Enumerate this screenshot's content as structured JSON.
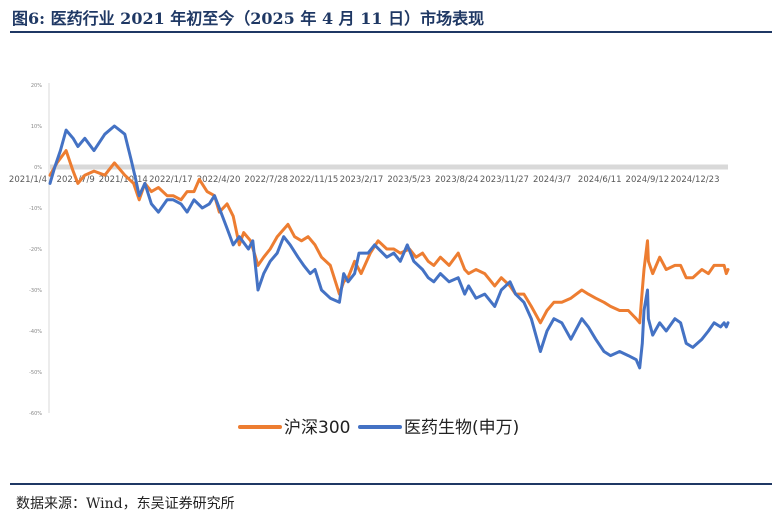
{
  "figure": {
    "title": "图6:  医药行业 2021 年初至今（2025 年 4 月 11 日）市场表现",
    "source": "数据来源：Wind，东吴证券研究所"
  },
  "chart_data": {
    "type": "line",
    "x_tick_labels": [
      "2021/1/4",
      "2021/7/9",
      "2021/10/14",
      "2022/1/17",
      "2022/4/20",
      "2022/7/28",
      "2022/11/15",
      "2023/2/17",
      "2023/5/23",
      "2023/8/24",
      "2023/11/27",
      "2024/3/7",
      "2024/6/11",
      "2024/9/12",
      "2024/12/23"
    ],
    "y_tick_labels": [
      "20%",
      "10%",
      "0%",
      "-10%",
      "-20%",
      "-30%",
      "-40%",
      "-50%",
      "-60%"
    ],
    "y_ticks": [
      20,
      10,
      0,
      -10,
      -20,
      -30,
      -40,
      -50,
      -60
    ],
    "ylim": [
      -60,
      20
    ],
    "x_range": [
      "2021-01-04",
      "2025-04-11"
    ],
    "legend_position": "bottom",
    "series": [
      {
        "name": "沪深300",
        "color": "#ed7d31",
        "points": [
          [
            "2021-01-04",
            -2
          ],
          [
            "2021-01-20",
            1
          ],
          [
            "2021-02-10",
            4
          ],
          [
            "2021-02-26",
            -1
          ],
          [
            "2021-03-09",
            -4
          ],
          [
            "2021-03-25",
            -2
          ],
          [
            "2021-04-15",
            -1
          ],
          [
            "2021-05-10",
            -2
          ],
          [
            "2021-06-01",
            1
          ],
          [
            "2021-06-25",
            -2
          ],
          [
            "2021-07-15",
            -4
          ],
          [
            "2021-07-28",
            -8
          ],
          [
            "2021-08-10",
            -4
          ],
          [
            "2021-08-25",
            -6
          ],
          [
            "2021-09-10",
            -5
          ],
          [
            "2021-09-30",
            -7
          ],
          [
            "2021-10-14",
            -7
          ],
          [
            "2021-11-01",
            -8
          ],
          [
            "2021-11-15",
            -6
          ],
          [
            "2021-12-01",
            -6
          ],
          [
            "2021-12-13",
            -3
          ],
          [
            "2021-12-31",
            -6
          ],
          [
            "2022-01-17",
            -7
          ],
          [
            "2022-01-28",
            -11
          ],
          [
            "2022-02-15",
            -9
          ],
          [
            "2022-03-01",
            -12
          ],
          [
            "2022-03-15",
            -19
          ],
          [
            "2022-03-25",
            -16
          ],
          [
            "2022-04-10",
            -18
          ],
          [
            "2022-04-27",
            -24
          ],
          [
            "2022-05-10",
            -22
          ],
          [
            "2022-05-25",
            -20
          ],
          [
            "2022-06-10",
            -17
          ],
          [
            "2022-07-05",
            -14
          ],
          [
            "2022-07-20",
            -17
          ],
          [
            "2022-08-05",
            -18
          ],
          [
            "2022-08-20",
            -17
          ],
          [
            "2022-09-05",
            -19
          ],
          [
            "2022-09-20",
            -22
          ],
          [
            "2022-10-10",
            -24
          ],
          [
            "2022-10-31",
            -31
          ],
          [
            "2022-11-10",
            -28
          ],
          [
            "2022-11-20",
            -27
          ],
          [
            "2022-12-05",
            -23
          ],
          [
            "2022-12-20",
            -26
          ],
          [
            "2023-01-10",
            -21
          ],
          [
            "2023-01-28",
            -18
          ],
          [
            "2023-02-17",
            -20
          ],
          [
            "2023-03-05",
            -20
          ],
          [
            "2023-03-20",
            -21
          ],
          [
            "2023-04-10",
            -20
          ],
          [
            "2023-04-25",
            -22
          ],
          [
            "2023-05-10",
            -21
          ],
          [
            "2023-05-23",
            -23
          ],
          [
            "2023-06-05",
            -24
          ],
          [
            "2023-06-20",
            -22
          ],
          [
            "2023-07-10",
            -24
          ],
          [
            "2023-07-31",
            -21
          ],
          [
            "2023-08-15",
            -25
          ],
          [
            "2023-08-24",
            -26
          ],
          [
            "2023-09-10",
            -25
          ],
          [
            "2023-09-30",
            -26
          ],
          [
            "2023-10-23",
            -29
          ],
          [
            "2023-11-07",
            -27
          ],
          [
            "2023-11-27",
            -29
          ],
          [
            "2023-12-10",
            -31
          ],
          [
            "2023-12-29",
            -31
          ],
          [
            "2024-01-15",
            -34
          ],
          [
            "2024-02-05",
            -38
          ],
          [
            "2024-02-20",
            -35
          ],
          [
            "2024-03-07",
            -33
          ],
          [
            "2024-03-25",
            -33
          ],
          [
            "2024-04-15",
            -32
          ],
          [
            "2024-05-10",
            -30
          ],
          [
            "2024-05-25",
            -31
          ],
          [
            "2024-06-11",
            -32
          ],
          [
            "2024-06-30",
            -33
          ],
          [
            "2024-07-15",
            -34
          ],
          [
            "2024-08-05",
            -35
          ],
          [
            "2024-08-25",
            -35
          ],
          [
            "2024-09-12",
            -37
          ],
          [
            "2024-09-20",
            -38
          ],
          [
            "2024-09-26",
            -30
          ],
          [
            "2024-09-30",
            -25
          ],
          [
            "2024-10-08",
            -18
          ],
          [
            "2024-10-10",
            -23
          ],
          [
            "2024-10-20",
            -26
          ],
          [
            "2024-11-05",
            -22
          ],
          [
            "2024-11-20",
            -25
          ],
          [
            "2024-12-10",
            -24
          ],
          [
            "2024-12-23",
            -24
          ],
          [
            "2025-01-05",
            -27
          ],
          [
            "2025-01-20",
            -27
          ],
          [
            "2025-02-10",
            -25
          ],
          [
            "2025-02-25",
            -26
          ],
          [
            "2025-03-10",
            -24
          ],
          [
            "2025-03-25",
            -24
          ],
          [
            "2025-04-02",
            -24
          ],
          [
            "2025-04-07",
            -26
          ],
          [
            "2025-04-11",
            -25
          ]
        ]
      },
      {
        "name": "医药生物(申万)",
        "color": "#4472c4",
        "points": [
          [
            "2021-01-04",
            -4
          ],
          [
            "2021-01-15",
            0
          ],
          [
            "2021-01-28",
            4
          ],
          [
            "2021-02-10",
            9
          ],
          [
            "2021-02-26",
            7
          ],
          [
            "2021-03-09",
            5
          ],
          [
            "2021-03-25",
            7
          ],
          [
            "2021-04-15",
            4
          ],
          [
            "2021-05-10",
            8
          ],
          [
            "2021-06-01",
            10
          ],
          [
            "2021-06-25",
            8
          ],
          [
            "2021-07-09",
            2
          ],
          [
            "2021-07-20",
            -3
          ],
          [
            "2021-07-28",
            -7
          ],
          [
            "2021-08-10",
            -4
          ],
          [
            "2021-08-25",
            -9
          ],
          [
            "2021-09-10",
            -11
          ],
          [
            "2021-09-30",
            -8
          ],
          [
            "2021-10-14",
            -8
          ],
          [
            "2021-11-01",
            -9
          ],
          [
            "2021-11-15",
            -11
          ],
          [
            "2021-12-01",
            -8
          ],
          [
            "2021-12-20",
            -10
          ],
          [
            "2022-01-05",
            -9
          ],
          [
            "2022-01-17",
            -7
          ],
          [
            "2022-01-28",
            -10
          ],
          [
            "2022-02-15",
            -15
          ],
          [
            "2022-03-01",
            -19
          ],
          [
            "2022-03-15",
            -17
          ],
          [
            "2022-04-05",
            -20
          ],
          [
            "2022-04-15",
            -18
          ],
          [
            "2022-04-27",
            -30
          ],
          [
            "2022-05-10",
            -26
          ],
          [
            "2022-05-25",
            -23
          ],
          [
            "2022-06-10",
            -21
          ],
          [
            "2022-06-25",
            -17
          ],
          [
            "2022-07-10",
            -19
          ],
          [
            "2022-07-28",
            -22
          ],
          [
            "2022-08-10",
            -24
          ],
          [
            "2022-08-25",
            -26
          ],
          [
            "2022-09-05",
            -25
          ],
          [
            "2022-09-20",
            -30
          ],
          [
            "2022-10-10",
            -32
          ],
          [
            "2022-10-31",
            -33
          ],
          [
            "2022-11-10",
            -26
          ],
          [
            "2022-11-20",
            -28
          ],
          [
            "2022-12-05",
            -26
          ],
          [
            "2022-12-15",
            -21
          ],
          [
            "2023-01-05",
            -21
          ],
          [
            "2023-01-20",
            -19
          ],
          [
            "2023-02-17",
            -22
          ],
          [
            "2023-03-05",
            -21
          ],
          [
            "2023-03-20",
            -23
          ],
          [
            "2023-04-05",
            -19
          ],
          [
            "2023-04-20",
            -23
          ],
          [
            "2023-05-10",
            -25
          ],
          [
            "2023-05-23",
            -27
          ],
          [
            "2023-06-05",
            -28
          ],
          [
            "2023-06-20",
            -26
          ],
          [
            "2023-07-10",
            -28
          ],
          [
            "2023-07-31",
            -27
          ],
          [
            "2023-08-15",
            -31
          ],
          [
            "2023-08-24",
            -29
          ],
          [
            "2023-09-10",
            -32
          ],
          [
            "2023-09-30",
            -31
          ],
          [
            "2023-10-23",
            -34
          ],
          [
            "2023-11-07",
            -30
          ],
          [
            "2023-11-27",
            -28
          ],
          [
            "2023-12-10",
            -31
          ],
          [
            "2023-12-29",
            -33
          ],
          [
            "2024-01-15",
            -37
          ],
          [
            "2024-02-05",
            -45
          ],
          [
            "2024-02-20",
            -40
          ],
          [
            "2024-03-07",
            -37
          ],
          [
            "2024-03-25",
            -38
          ],
          [
            "2024-04-15",
            -42
          ],
          [
            "2024-05-10",
            -37
          ],
          [
            "2024-05-25",
            -39
          ],
          [
            "2024-06-11",
            -42
          ],
          [
            "2024-06-30",
            -45
          ],
          [
            "2024-07-15",
            -46
          ],
          [
            "2024-08-05",
            -45
          ],
          [
            "2024-08-25",
            -46
          ],
          [
            "2024-09-12",
            -47
          ],
          [
            "2024-09-20",
            -49
          ],
          [
            "2024-09-26",
            -43
          ],
          [
            "2024-09-30",
            -35
          ],
          [
            "2024-10-08",
            -30
          ],
          [
            "2024-10-10",
            -37
          ],
          [
            "2024-10-20",
            -41
          ],
          [
            "2024-11-05",
            -38
          ],
          [
            "2024-11-20",
            -40
          ],
          [
            "2024-12-10",
            -37
          ],
          [
            "2024-12-23",
            -38
          ],
          [
            "2025-01-05",
            -43
          ],
          [
            "2025-01-20",
            -44
          ],
          [
            "2025-02-10",
            -42
          ],
          [
            "2025-02-25",
            -40
          ],
          [
            "2025-03-10",
            -38
          ],
          [
            "2025-03-25",
            -39
          ],
          [
            "2025-04-02",
            -38
          ],
          [
            "2025-04-07",
            -39
          ],
          [
            "2025-04-11",
            -38
          ]
        ]
      }
    ]
  }
}
